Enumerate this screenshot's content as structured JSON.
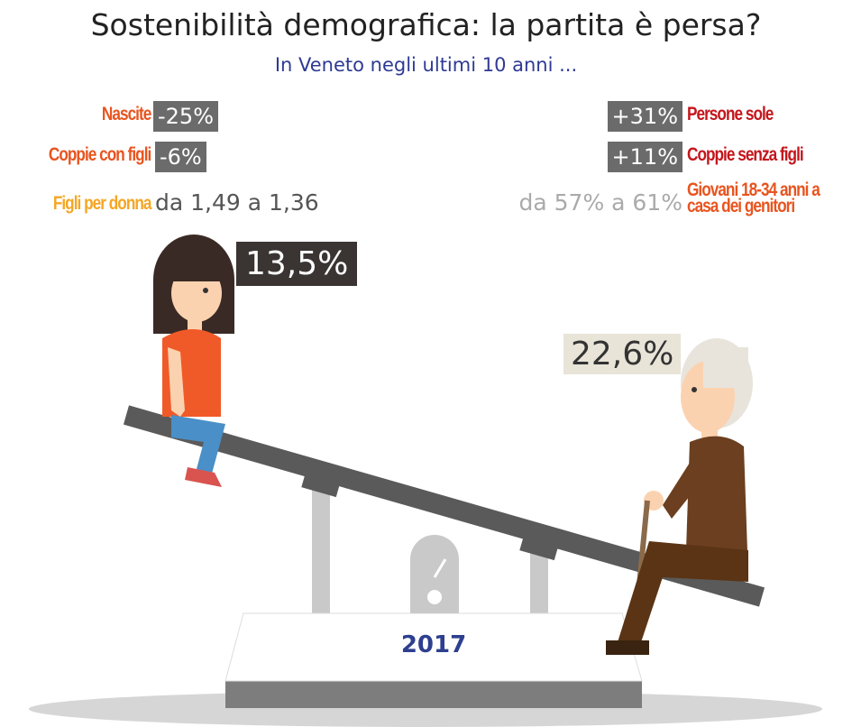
{
  "title": "Sostenibilità demografica: la partita è persa?",
  "subtitle": "In Veneto negli ultimi 10 anni ...",
  "left_stats": [
    {
      "label": "Nascite",
      "value": "-25%"
    },
    {
      "label": "Coppie con figli",
      "value": "-6%"
    },
    {
      "label": "Figli per donna",
      "value": "da 1,49 a 1,36"
    }
  ],
  "right_stats": [
    {
      "value": "+31%",
      "label": "Persone sole"
    },
    {
      "value": "+11%",
      "label": "Coppie senza figli"
    },
    {
      "value": "da 57% a 61%",
      "label": "Giovani 18-34 anni a casa dei genitori"
    }
  ],
  "young_share": "13,5%",
  "old_share": "22,6%",
  "year": "2017"
}
